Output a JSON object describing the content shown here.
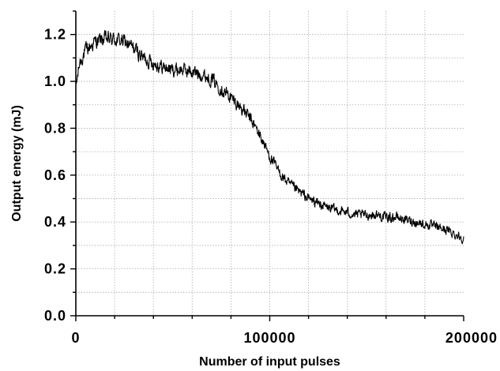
{
  "chart_data": {
    "type": "line",
    "title": "",
    "xlabel": "Number of input pulses",
    "ylabel": "Output energy (mJ)",
    "xlim": [
      0,
      200000
    ],
    "ylim": [
      0.0,
      1.3
    ],
    "x_ticks": [
      0,
      100000,
      200000
    ],
    "x_tick_labels": [
      "0",
      "100000",
      "200000"
    ],
    "y_ticks": [
      0.0,
      0.2,
      0.4,
      0.6,
      0.8,
      1.0,
      1.2
    ],
    "y_tick_labels": [
      "0.0",
      "0.2",
      "0.4",
      "0.6",
      "0.8",
      "1.0",
      "1.2"
    ],
    "grid": true,
    "grid_style": "dotted",
    "line_color": "#000000",
    "series": [
      {
        "x": [
          0,
          2000,
          5000,
          10000,
          15000,
          20000,
          25000,
          30000,
          35000,
          40000,
          45000,
          50000,
          55000,
          60000,
          65000,
          70000,
          75000,
          80000,
          85000,
          90000,
          95000,
          100000,
          105000,
          110000,
          115000,
          120000,
          125000,
          130000,
          135000,
          140000,
          145000,
          150000,
          155000,
          160000,
          165000,
          170000,
          175000,
          180000,
          185000,
          190000,
          195000,
          200000
        ],
        "y": [
          0.97,
          1.08,
          1.13,
          1.17,
          1.18,
          1.18,
          1.17,
          1.14,
          1.1,
          1.08,
          1.06,
          1.05,
          1.05,
          1.04,
          1.03,
          1.01,
          0.97,
          0.93,
          0.89,
          0.84,
          0.77,
          0.68,
          0.61,
          0.56,
          0.53,
          0.5,
          0.48,
          0.46,
          0.45,
          0.44,
          0.43,
          0.43,
          0.43,
          0.42,
          0.42,
          0.41,
          0.4,
          0.39,
          0.38,
          0.37,
          0.35,
          0.33
        ]
      }
    ]
  }
}
